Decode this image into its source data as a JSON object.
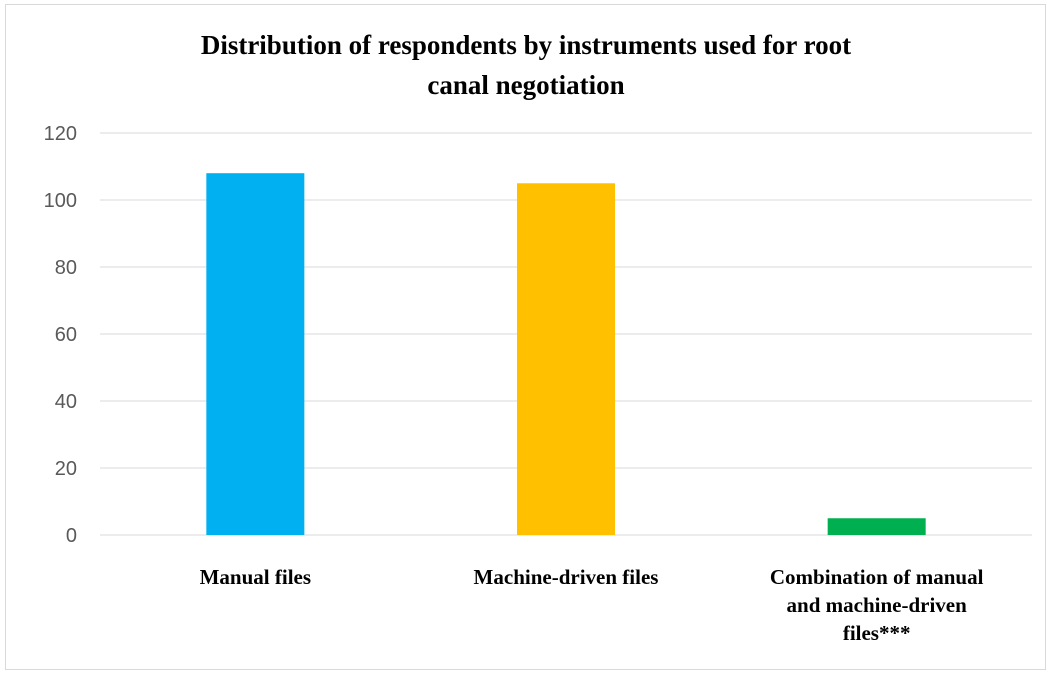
{
  "chart_data": {
    "type": "bar",
    "title": "Distribution of respondents by instruments used for root canal negotiation",
    "title_lines": [
      "Distribution of respondents by instruments used for root",
      "canal negotiation"
    ],
    "categories": [
      "Manual files",
      "Machine-driven files",
      "Combination of manual and machine-driven files***"
    ],
    "category_lines": [
      [
        "Manual files"
      ],
      [
        "Machine-driven files"
      ],
      [
        "Combination of manual",
        "and machine-driven",
        "files***"
      ]
    ],
    "values": [
      108,
      105,
      5
    ],
    "colors": [
      "#00B0F0",
      "#FFC000",
      "#00B050"
    ],
    "xlabel": "",
    "ylabel": "",
    "ylim": [
      0,
      120
    ],
    "yticks": [
      "0",
      "20",
      "40",
      "60",
      "80",
      "100",
      "120"
    ],
    "grid": true,
    "legend": "none"
  }
}
